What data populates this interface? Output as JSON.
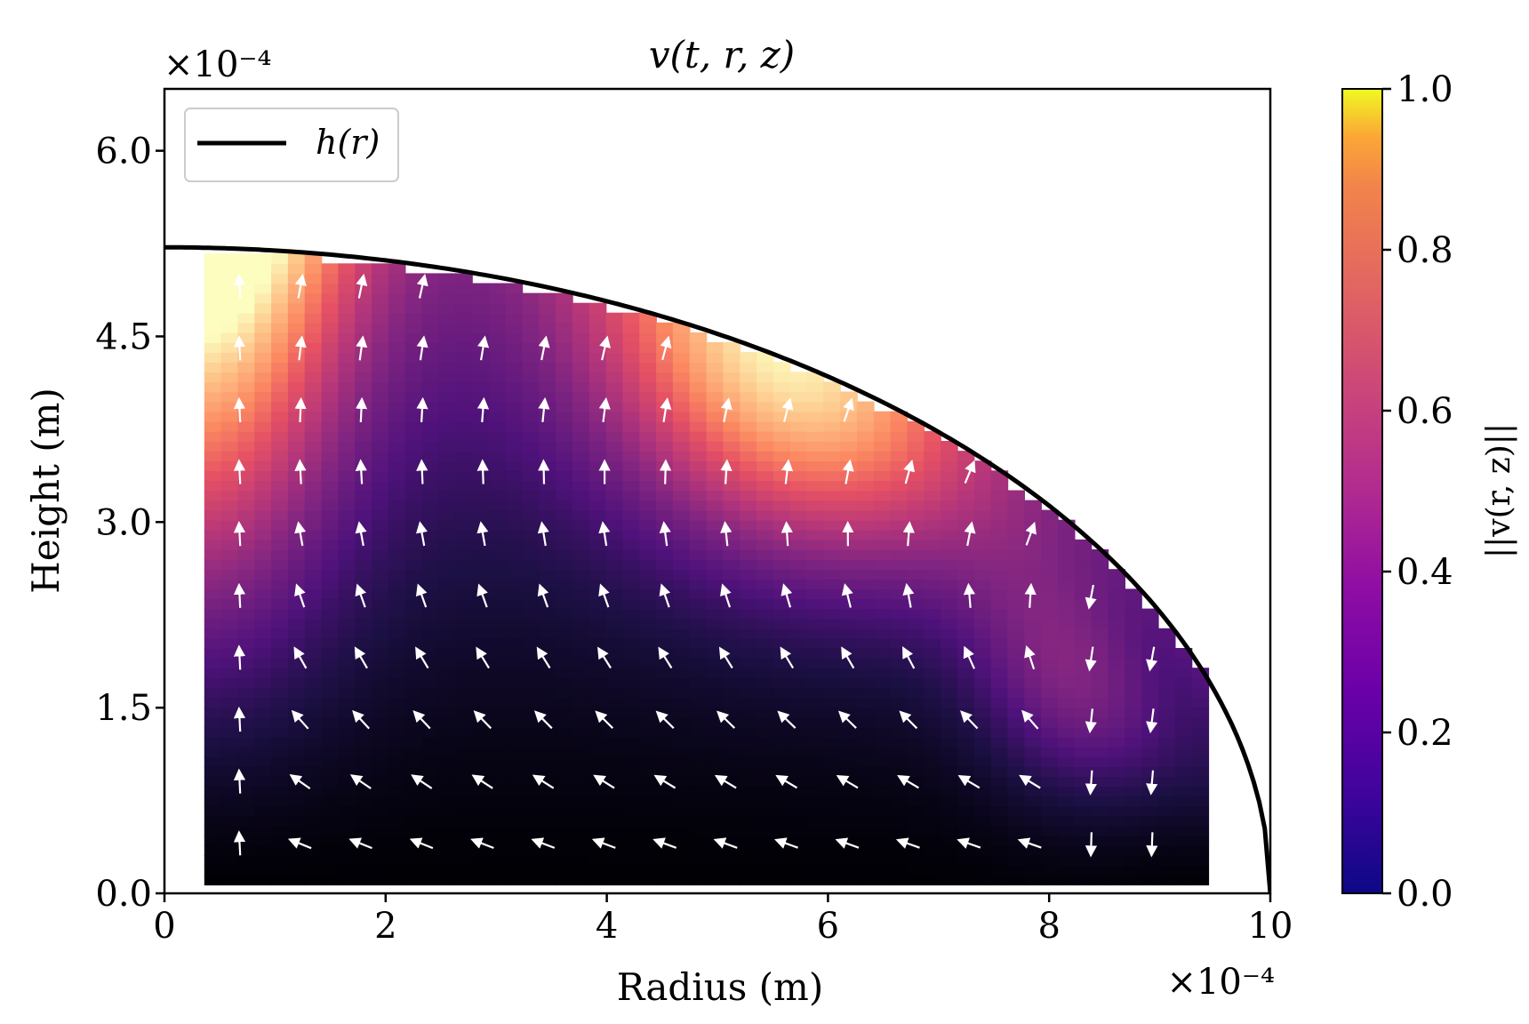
{
  "chart_data": {
    "type": "heatmap",
    "title": "v(t, r, z)",
    "xlabel": "Radius (m)",
    "ylabel": "Height (m)",
    "x_multiplier": "×10⁻⁴",
    "y_multiplier": "×10⁻⁴",
    "xlim": [
      0,
      10
    ],
    "ylim": [
      0,
      6.5
    ],
    "x_ticks": [
      "0",
      "2",
      "4",
      "6",
      "8",
      "10"
    ],
    "y_ticks": [
      "0.0",
      "1.5",
      "3.0",
      "4.5",
      "6.0"
    ],
    "legend": {
      "position": "upper-left",
      "entries": [
        {
          "label": "h(r)",
          "color": "#000000"
        }
      ]
    },
    "interface": {
      "name": "h(r)",
      "h0": 5.22,
      "R": 10
    },
    "colorbar": {
      "label": "||v(r, z)||",
      "colormap": "plasma-magma",
      "range": [
        0,
        1
      ],
      "ticks": [
        "0.0",
        "0.2",
        "0.4",
        "0.6",
        "0.8",
        "1.0"
      ]
    },
    "field_extent": {
      "r": [
        0.36,
        9.44
      ],
      "z": [
        0.07,
        5.17
      ]
    },
    "quiver": {
      "r_columns": [
        0.68,
        1.23,
        1.78,
        2.33,
        2.88,
        3.43,
        3.98,
        4.53,
        5.08,
        5.63,
        6.18,
        6.73,
        7.28,
        7.83,
        8.38,
        8.93
      ],
      "description": "circulation: upward along axis, outward along top, downward near edge, inward along bottom"
    },
    "colors": {
      "cmap_low": "#000004",
      "cmap_mid": "#b53679",
      "cmap_high": "#fcfdbf",
      "cb_low": "#0d0887",
      "cb_high": "#f0f921"
    }
  }
}
